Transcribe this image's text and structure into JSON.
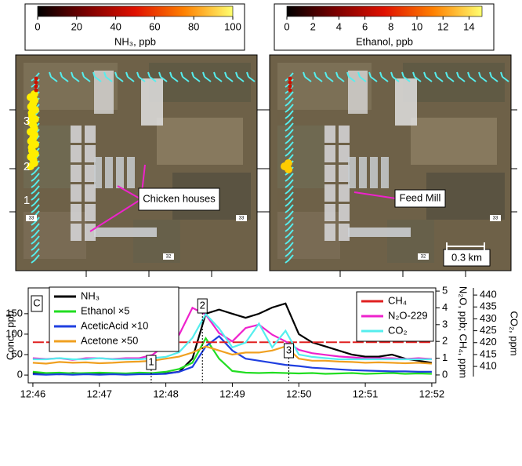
{
  "chart_data": [
    {
      "type": "colorbar",
      "label": "NH₃, ppb",
      "xlim": [
        0,
        100
      ],
      "xticks": [
        0,
        20,
        40,
        60,
        80,
        100
      ],
      "colors": [
        "#000000",
        "#7a0000",
        "#e01000",
        "#ff8000",
        "#ffff70"
      ]
    },
    {
      "type": "colorbar",
      "label": "Ethanol, ppb",
      "xlim": [
        0,
        15
      ],
      "xticks": [
        0,
        2,
        4,
        6,
        8,
        10,
        12,
        14
      ],
      "colors": [
        "#000000",
        "#7a0000",
        "#e01000",
        "#ff8000",
        "#ffff70"
      ]
    },
    {
      "type": "map",
      "labels": [
        "3",
        "2",
        "1"
      ],
      "callout": "Chicken houses",
      "road_labels": [
        "33",
        "33",
        "32"
      ]
    },
    {
      "type": "map",
      "callout": "Feed Mill",
      "scale_bar": "0.3 km",
      "road_labels": [
        "33",
        "32"
      ]
    },
    {
      "type": "line",
      "panel_label": "C",
      "x": [
        46.0,
        46.2,
        46.4,
        46.6,
        46.8,
        47.0,
        47.2,
        47.4,
        47.6,
        47.8,
        48.0,
        48.2,
        48.4,
        48.6,
        48.8,
        49.0,
        49.2,
        49.4,
        49.6,
        49.8,
        50.0,
        50.2,
        50.4,
        50.6,
        50.8,
        51.0,
        51.2,
        51.4,
        51.6,
        51.8,
        52.0
      ],
      "xlim": [
        45.93,
        52.06
      ],
      "xticks": [
        {
          "value": 46,
          "label": "12:46"
        },
        {
          "value": 47,
          "label": "12:47"
        },
        {
          "value": 48,
          "label": "12:48"
        },
        {
          "value": 49,
          "label": "12:49"
        },
        {
          "value": 50,
          "label": "12:50"
        },
        {
          "value": 51,
          "label": "12:51"
        },
        {
          "value": 52,
          "label": "12:52"
        }
      ],
      "ylim": [
        -19,
        213
      ],
      "yticks": [
        0,
        50,
        100,
        150
      ],
      "ylabel": "Conc., ppb",
      "y2lim": [
        -0.47,
        5.19
      ],
      "y2ticks": [
        0,
        1,
        2,
        3,
        4,
        5
      ],
      "y2label": "N₂O, ppb; CH₄, ppm",
      "y3lim": [
        403.1,
        443
      ],
      "y3ticks": [
        410,
        415,
        420,
        425,
        430,
        435,
        440
      ],
      "y3label": "CO₂, ppm",
      "series": [
        {
          "name": "NH₃",
          "color": "#000000",
          "axis": "y",
          "values": [
            5,
            3,
            2,
            5,
            3,
            2,
            4,
            3,
            5,
            3,
            4,
            8,
            40,
            150,
            160,
            150,
            140,
            150,
            165,
            175,
            100,
            80,
            70,
            60,
            50,
            45,
            45,
            50,
            40,
            35,
            30
          ]
        },
        {
          "name": "Ethanol ×5",
          "color": "#22dd22",
          "axis": "y",
          "values": [
            8,
            5,
            6,
            4,
            5,
            6,
            5,
            4,
            6,
            5,
            8,
            15,
            30,
            90,
            40,
            10,
            6,
            5,
            6,
            5,
            4,
            5,
            3,
            4,
            5,
            3,
            4,
            5,
            3,
            4,
            3
          ]
        },
        {
          "name": "AceticAcid ×10",
          "color": "#1f3fe0",
          "axis": "y",
          "values": [
            2,
            1,
            2,
            1,
            2,
            1,
            2,
            1,
            2,
            2,
            3,
            8,
            20,
            70,
            95,
            60,
            40,
            35,
            30,
            25,
            22,
            18,
            16,
            14,
            12,
            11,
            10,
            9,
            9,
            8,
            8
          ]
        },
        {
          "name": "Acetone ×50",
          "color": "#f0a020",
          "axis": "y",
          "values": [
            30,
            28,
            32,
            30,
            31,
            29,
            30,
            32,
            33,
            35,
            40,
            45,
            55,
            70,
            60,
            50,
            55,
            55,
            60,
            70,
            40,
            35,
            35,
            33,
            32,
            30,
            31,
            30,
            29,
            30,
            28
          ]
        },
        {
          "name": "CH₄",
          "color": "#e02020",
          "axis": "y2",
          "values": [
            1.95,
            1.95,
            1.95,
            1.95,
            1.95,
            1.95,
            1.95,
            1.95,
            1.95,
            1.95,
            1.95,
            1.95,
            1.95,
            1.95,
            1.95,
            1.95,
            1.95,
            1.95,
            1.95,
            1.95,
            1.95,
            1.95,
            1.95,
            1.95,
            1.95,
            1.95,
            1.95,
            1.95,
            1.95,
            1.95,
            1.95
          ]
        },
        {
          "name": "N₂O-229",
          "color": "#ee22cc",
          "axis": "y2",
          "values": [
            1.0,
            0.95,
            1.0,
            0.9,
            1.0,
            1.0,
            0.95,
            1.0,
            1.0,
            1.2,
            1.8,
            2.4,
            4.0,
            3.6,
            2.5,
            2.0,
            2.8,
            3.0,
            2.4,
            2.0,
            1.5,
            1.3,
            1.2,
            1.1,
            1.05,
            1.0,
            1.0,
            1.0,
            0.95,
            1.0,
            0.95
          ]
        },
        {
          "name": "CO₂",
          "color": "#55eeee",
          "axis": "y3",
          "values": [
            413,
            413,
            413.5,
            413,
            413,
            413.5,
            413,
            413,
            413,
            413.5,
            414,
            416,
            422,
            432,
            426,
            418,
            420,
            428,
            418,
            425,
            415,
            414,
            413.5,
            413,
            413,
            413,
            413,
            413,
            413,
            413,
            413
          ]
        }
      ],
      "annotations": [
        {
          "text": "1",
          "x": 47.78
        },
        {
          "text": "2",
          "x": 48.55
        },
        {
          "text": "3",
          "x": 49.85
        }
      ]
    }
  ]
}
